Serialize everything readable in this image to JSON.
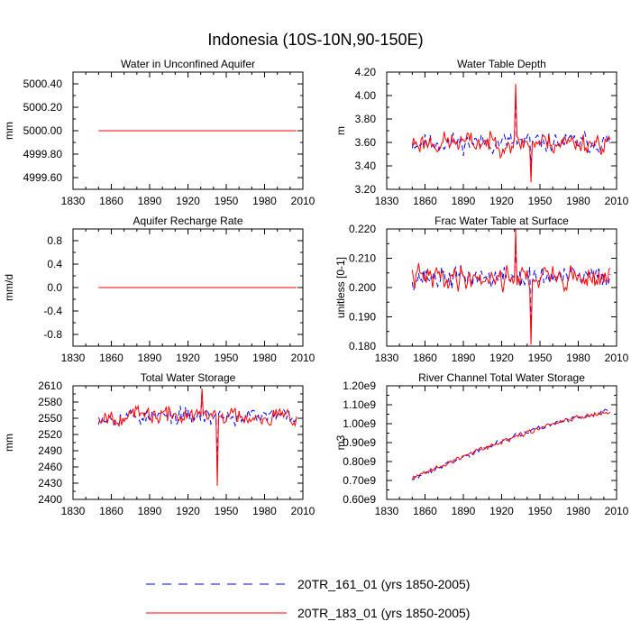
{
  "figure": {
    "title": "Indonesia (10S-10N,90-150E)"
  },
  "legend": [
    {
      "label": "20TR_161_01 (yrs 1850-2005)",
      "color": "#0000ff",
      "dash": "dashed"
    },
    {
      "label": "20TR_183_01 (yrs 1850-2005)",
      "color": "#ff0000",
      "dash": "solid"
    }
  ],
  "chart_data": [
    {
      "type": "line",
      "title": "Water in Unconfined Aquifer",
      "ylabel": "mm",
      "xlim": [
        1830,
        2010
      ],
      "xticks": [
        1830,
        1860,
        1890,
        1920,
        1950,
        1980,
        2010
      ],
      "ylim": [
        4999.5,
        5000.5
      ],
      "yticks": [
        4999.6,
        4999.8,
        5000.0,
        5000.2,
        5000.4
      ],
      "yticklabels": [
        "4999.60",
        "4999.80",
        "5000.00",
        "5000.20",
        "5000.40"
      ],
      "series": [
        {
          "name": "20TR_161_01",
          "gen": {
            "type": "const",
            "value": 5000.0
          }
        },
        {
          "name": "20TR_183_01",
          "gen": {
            "type": "const",
            "value": 5000.0
          }
        }
      ]
    },
    {
      "type": "line",
      "title": "Water Table Depth",
      "ylabel": "m",
      "xlim": [
        1830,
        2010
      ],
      "xticks": [
        1830,
        1860,
        1890,
        1920,
        1950,
        1980,
        2010
      ],
      "ylim": [
        3.2,
        4.2
      ],
      "yticks": [
        3.2,
        3.4,
        3.6,
        3.8,
        4.0,
        4.2
      ],
      "yticklabels": [
        "3.20",
        "3.40",
        "3.60",
        "3.80",
        "4.00",
        "4.20"
      ],
      "series": [
        {
          "name": "20TR_161_01",
          "gen": {
            "type": "noise",
            "mean": 3.6,
            "amp": 0.1,
            "max": 4.02,
            "min": 3.38,
            "seed": 11
          }
        },
        {
          "name": "20TR_183_01",
          "gen": {
            "type": "noise",
            "mean": 3.6,
            "amp": 0.11,
            "max": 4.1,
            "min": 3.26,
            "seed": 23
          }
        }
      ]
    },
    {
      "type": "line",
      "title": "Aquifer Recharge Rate",
      "ylabel": "mm/d",
      "xlim": [
        1830,
        2010
      ],
      "xticks": [
        1830,
        1860,
        1890,
        1920,
        1950,
        1980,
        2010
      ],
      "ylim": [
        -1.0,
        1.0
      ],
      "yticks": [
        -0.8,
        -0.4,
        0.0,
        0.4,
        0.8
      ],
      "yticklabels": [
        "-0.8",
        "-0.4",
        "0.0",
        "0.4",
        "0.8"
      ],
      "series": [
        {
          "name": "20TR_161_01",
          "gen": {
            "type": "const",
            "value": 0.0
          }
        },
        {
          "name": "20TR_183_01",
          "gen": {
            "type": "const",
            "value": 0.0
          }
        }
      ]
    },
    {
      "type": "line",
      "title": "Frac Water Table at Surface",
      "ylabel": "unitless [0-1]",
      "xlim": [
        1830,
        2010
      ],
      "xticks": [
        1830,
        1860,
        1890,
        1920,
        1950,
        1980,
        2010
      ],
      "ylim": [
        0.18,
        0.22
      ],
      "yticks": [
        0.18,
        0.19,
        0.2,
        0.21,
        0.22
      ],
      "yticklabels": [
        "0.180",
        "0.190",
        "0.200",
        "0.210",
        "0.220"
      ],
      "series": [
        {
          "name": "20TR_161_01",
          "gen": {
            "type": "noise",
            "mean": 0.2035,
            "amp": 0.0045,
            "max": 0.2125,
            "min": 0.1835,
            "seed": 37
          }
        },
        {
          "name": "20TR_183_01",
          "gen": {
            "type": "noise",
            "mean": 0.2035,
            "amp": 0.005,
            "max": 0.22,
            "min": 0.1805,
            "seed": 41
          }
        }
      ]
    },
    {
      "type": "line",
      "title": "Total Water Storage",
      "ylabel": "mm",
      "xlim": [
        1830,
        2010
      ],
      "xticks": [
        1830,
        1860,
        1890,
        1920,
        1950,
        1980,
        2010
      ],
      "ylim": [
        2400,
        2610
      ],
      "yticks": [
        2400,
        2430,
        2460,
        2490,
        2520,
        2550,
        2580,
        2610
      ],
      "yticklabels": [
        "2400",
        "2430",
        "2460",
        "2490",
        "2520",
        "2550",
        "2580",
        "2610"
      ],
      "series": [
        {
          "name": "20TR_161_01",
          "gen": {
            "type": "noise",
            "mean": 2553,
            "amp": 18,
            "max": 2600,
            "min": 2468,
            "seed": 53
          }
        },
        {
          "name": "20TR_183_01",
          "gen": {
            "type": "noise",
            "mean": 2555,
            "amp": 20,
            "max": 2605,
            "min": 2425,
            "seed": 67
          }
        }
      ]
    },
    {
      "type": "line",
      "title": "River Channel Total Water Storage",
      "ylabel": "m3",
      "xlim": [
        1830,
        2010
      ],
      "xticks": [
        1830,
        1860,
        1890,
        1920,
        1950,
        1980,
        2010
      ],
      "ylim": [
        600000000,
        1200000000
      ],
      "yticks": [
        600000000,
        700000000,
        800000000,
        900000000,
        1000000000,
        1100000000,
        1200000000
      ],
      "yticklabels": [
        "0.60e9",
        "0.70e9",
        "0.80e9",
        "0.90e9",
        "1.00e9",
        "1.10e9",
        "1.20e9"
      ],
      "series": [
        {
          "name": "20TR_161_01",
          "gen": {
            "type": "trend",
            "start": 705000000,
            "end": 1065000000,
            "amp": 16000000,
            "seed": 71
          }
        },
        {
          "name": "20TR_183_01",
          "gen": {
            "type": "trend",
            "start": 710000000,
            "end": 1062000000,
            "amp": 17000000,
            "seed": 89
          }
        }
      ]
    }
  ]
}
